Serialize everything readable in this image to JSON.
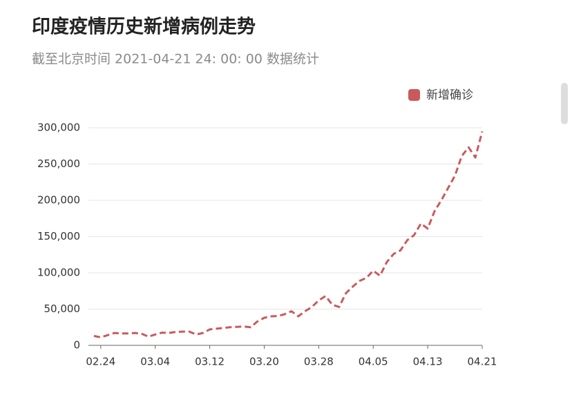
{
  "chart_data": {
    "type": "line",
    "title": "印度疫情历史新增病例走势",
    "subtitle": "截至北京时间 2021-04-21 24: 00: 00 数据统计",
    "categories": [
      null,
      "02.24",
      null,
      null,
      null,
      null,
      null,
      null,
      null,
      "03.04",
      null,
      null,
      null,
      null,
      null,
      null,
      null,
      "03.12",
      null,
      null,
      null,
      null,
      null,
      null,
      null,
      "03.20",
      null,
      null,
      null,
      null,
      null,
      null,
      null,
      "03.28",
      null,
      null,
      null,
      null,
      null,
      null,
      null,
      "04.05",
      null,
      null,
      null,
      null,
      null,
      null,
      null,
      "04.13",
      null,
      null,
      null,
      null,
      null,
      null,
      null,
      "04.21"
    ],
    "series": [
      {
        "name": "新增确诊",
        "color": "#c95a5c",
        "values": [
          13000,
          11000,
          14000,
          17000,
          16500,
          16500,
          17000,
          16000,
          12000,
          15000,
          17500,
          17000,
          18500,
          19000,
          19000,
          15000,
          17000,
          22000,
          23000,
          24000,
          25000,
          25500,
          26000,
          25000,
          33000,
          38000,
          40000,
          40500,
          43000,
          47000,
          40000,
          47000,
          53000,
          62000,
          68000,
          56000,
          53000,
          72000,
          81000,
          89000,
          93000,
          103000,
          96000,
          115000,
          126000,
          131000,
          145000,
          152000,
          168000,
          161000,
          185000,
          200000,
          217000,
          234000,
          261000,
          273000,
          259000,
          295000
        ]
      }
    ],
    "ylim": [
      0,
      300000
    ],
    "yticks": [
      0,
      {
        "value": 50000,
        "label": "50,000"
      },
      {
        "value": 100000,
        "label": "100,000"
      },
      {
        "value": 150000,
        "label": "150,000"
      },
      {
        "value": 200000,
        "label": "200,000"
      },
      {
        "value": 250000,
        "label": "250,000"
      },
      {
        "value": 300000,
        "label": "300,000"
      }
    ],
    "grid": true,
    "legend": "top-right"
  }
}
